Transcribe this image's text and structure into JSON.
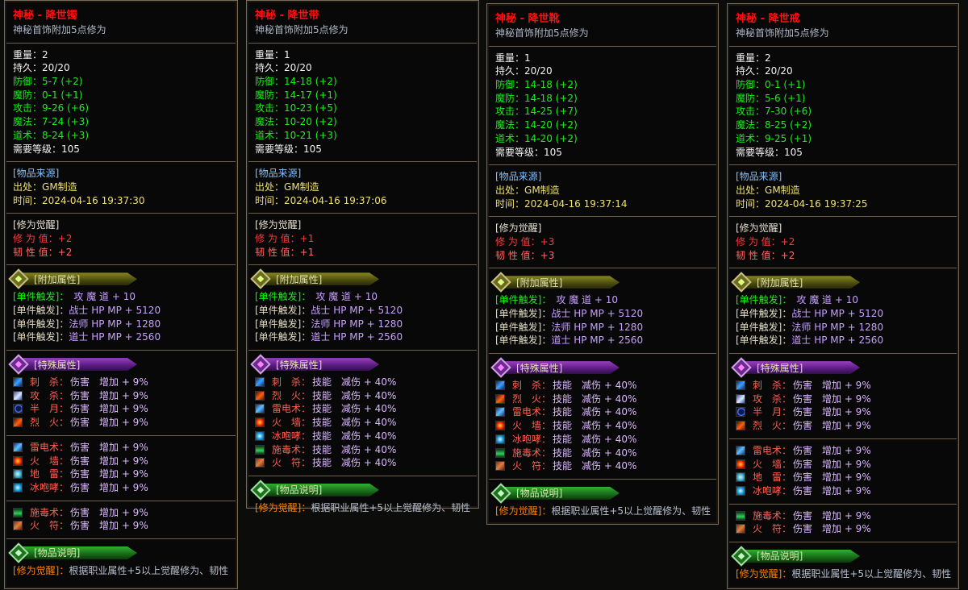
{
  "colors": {
    "title": "#ff1010",
    "green_stat": "#18f018",
    "source_header": "#80c0ff",
    "awaken_value": "#ff3a3a"
  },
  "labels": {
    "weight": "重量：",
    "durability": "持久：",
    "defense": "防御：",
    "mdefense": "魔防：",
    "attack": "攻击：",
    "magic": "魔法：",
    "taoism": "道术：",
    "level": "需要等级：",
    "source_header": "[物品来源]",
    "origin": "出处：",
    "time": "时间：",
    "awaken_header": "[修为觉醒]",
    "cultivation": "修 为 值：",
    "toughness": "韧 性 值：",
    "attach_banner": "[附加属性]",
    "special_banner": "[特殊属性]",
    "desc_banner": "[物品说明]",
    "desc_label": "[修为觉醒]：",
    "desc_text": "根据职业属性+5以上觉醒修为、韧性"
  },
  "attach_rows": [
    {
      "label": "[单件触发]：",
      "value": "　攻 魔 道 + 10"
    },
    {
      "label": "[单件触发]：",
      "value": "战士 HP MP + 5120"
    },
    {
      "label": "[单件触发]：",
      "value": "法师 HP MP + 1280"
    },
    {
      "label": "[单件触发]：",
      "value": "道士 HP MP + 2560"
    }
  ],
  "panels": [
    {
      "title": "神秘 - 降世镯",
      "subtitle": "神秘首饰附加5点修为",
      "weight": "2",
      "durability": "20/20",
      "defense": "5-7 (+2)",
      "mdefense": "0-1 (+1)",
      "attack": "9-26 (+6)",
      "magic": "7-24 (+3)",
      "taoism": "8-24 (+3)",
      "level": "105",
      "origin": "GM制造",
      "time": "2024-04-16 19:37:30",
      "cultivation": "+2",
      "toughness": "+2",
      "special_groups": [
        [
          {
            "icon": "cisha-skill-icon",
            "name": "刺　杀：",
            "value": "伤害　增加 + 9%"
          },
          {
            "icon": "gongsha-skill-icon",
            "name": "攻　杀：",
            "value": "伤害　增加 + 9%"
          },
          {
            "icon": "banyue-skill-icon",
            "name": "半　月：",
            "value": "伤害　增加 + 9%"
          },
          {
            "icon": "liehuo-skill-icon",
            "name": "烈　火：",
            "value": "伤害　增加 + 9%"
          }
        ],
        [
          {
            "icon": "leidian-skill-icon",
            "name": "雷电术：",
            "value": "伤害　增加 + 9%"
          },
          {
            "icon": "huoqiang-skill-icon",
            "name": "火　墙：",
            "value": "伤害　增加 + 9%"
          },
          {
            "icon": "dilei-skill-icon",
            "name": "地　雷：",
            "value": "伤害　增加 + 9%"
          },
          {
            "icon": "bingpaoxiao-skill-icon",
            "name": "冰咆哮：",
            "value": "伤害　增加 + 9%"
          }
        ],
        [
          {
            "icon": "shidu-skill-icon",
            "name": "施毒术：",
            "value": "伤害　增加 + 9%"
          },
          {
            "icon": "huofu-skill-icon",
            "name": "火　符：",
            "value": "伤害　增加 + 9%"
          }
        ]
      ]
    },
    {
      "title": "神秘 - 降世带",
      "subtitle": "神秘首饰附加5点修为",
      "weight": "1",
      "durability": "20/20",
      "defense": "14-18 (+2)",
      "mdefense": "14-17 (+1)",
      "attack": "10-23 (+5)",
      "magic": "10-20 (+2)",
      "taoism": "10-21 (+3)",
      "level": "105",
      "origin": "GM制造",
      "time": "2024-04-16 19:37:06",
      "cultivation": "+1",
      "toughness": "+1",
      "special_groups": [
        [
          {
            "icon": "cisha-skill-icon",
            "name": "刺　杀：",
            "value": "技能　减伤 + 40%"
          },
          {
            "icon": "liehuo-skill-icon",
            "name": "烈　火：",
            "value": "技能　减伤 + 40%"
          },
          {
            "icon": "leidian-skill-icon",
            "name": "雷电术：",
            "value": "技能　减伤 + 40%"
          },
          {
            "icon": "huoqiang-skill-icon",
            "name": "火　墙：",
            "value": "技能　减伤 + 40%"
          },
          {
            "icon": "bingpaoxiao-skill-icon",
            "name": "冰咆哮：",
            "value": "技能　减伤 + 40%"
          },
          {
            "icon": "shidu-skill-icon",
            "name": "施毒术：",
            "value": "技能　减伤 + 40%"
          },
          {
            "icon": "huofu-skill-icon",
            "name": "火　符：",
            "value": "技能　减伤 + 40%"
          }
        ]
      ]
    },
    {
      "title": "神秘 - 降世靴",
      "subtitle": "神秘首饰附加5点修为",
      "weight": "1",
      "durability": "20/20",
      "defense": "14-18 (+2)",
      "mdefense": "14-18 (+2)",
      "attack": "14-25 (+7)",
      "magic": "14-20 (+2)",
      "taoism": "14-20 (+2)",
      "level": "105",
      "origin": "GM制造",
      "time": "2024-04-16 19:37:14",
      "cultivation": "+3",
      "toughness": "+3",
      "special_groups": [
        [
          {
            "icon": "cisha-skill-icon",
            "name": "刺　杀：",
            "value": "技能　减伤 + 40%"
          },
          {
            "icon": "liehuo-skill-icon",
            "name": "烈　火：",
            "value": "技能　减伤 + 40%"
          },
          {
            "icon": "leidian-skill-icon",
            "name": "雷电术：",
            "value": "技能　减伤 + 40%"
          },
          {
            "icon": "huoqiang-skill-icon",
            "name": "火　墙：",
            "value": "技能　减伤 + 40%"
          },
          {
            "icon": "bingpaoxiao-skill-icon",
            "name": "冰咆哮：",
            "value": "技能　减伤 + 40%"
          },
          {
            "icon": "shidu-skill-icon",
            "name": "施毒术：",
            "value": "技能　减伤 + 40%"
          },
          {
            "icon": "huofu-skill-icon",
            "name": "火　符：",
            "value": "技能　减伤 + 40%"
          }
        ]
      ]
    },
    {
      "title": "神秘 - 降世戒",
      "subtitle": "神秘首饰附加5点修为",
      "weight": "2",
      "durability": "20/20",
      "defense": "0-1 (+1)",
      "mdefense": "5-6 (+1)",
      "attack": "7-30 (+6)",
      "magic": "8-25 (+2)",
      "taoism": "9-25 (+1)",
      "level": "105",
      "origin": "GM制造",
      "time": "2024-04-16 19:37:25",
      "cultivation": "+2",
      "toughness": "+2",
      "special_groups": [
        [
          {
            "icon": "cisha-skill-icon",
            "name": "刺　杀：",
            "value": "伤害　增加 + 9%"
          },
          {
            "icon": "gongsha-skill-icon",
            "name": "攻　杀：",
            "value": "伤害　增加 + 9%"
          },
          {
            "icon": "banyue-skill-icon",
            "name": "半　月：",
            "value": "伤害　增加 + 9%"
          },
          {
            "icon": "liehuo-skill-icon",
            "name": "烈　火：",
            "value": "伤害　增加 + 9%"
          }
        ],
        [
          {
            "icon": "leidian-skill-icon",
            "name": "雷电术：",
            "value": "伤害　增加 + 9%"
          },
          {
            "icon": "huoqiang-skill-icon",
            "name": "火　墙：",
            "value": "伤害　增加 + 9%"
          },
          {
            "icon": "dilei-skill-icon",
            "name": "地　雷：",
            "value": "伤害　增加 + 9%"
          },
          {
            "icon": "bingpaoxiao-skill-icon",
            "name": "冰咆哮：",
            "value": "伤害　增加 + 9%"
          }
        ],
        [
          {
            "icon": "shidu-skill-icon",
            "name": "施毒术：",
            "value": "伤害　增加 + 9%"
          },
          {
            "icon": "huofu-skill-icon",
            "name": "火　符：",
            "value": "伤害　增加 + 9%"
          }
        ]
      ]
    }
  ]
}
